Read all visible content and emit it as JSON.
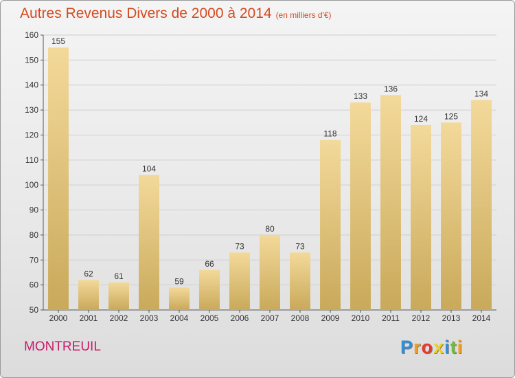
{
  "title": "Autres Revenus Divers de 2000 à 2014",
  "unit": "(en milliers d'€)",
  "commune": "MONTREUIL",
  "logo": {
    "letters": [
      {
        "char": "P",
        "color": "#2f8fd8"
      },
      {
        "char": "r",
        "color": "#f0a020"
      },
      {
        "char": "o",
        "color": "#e83a2a"
      },
      {
        "char": "x",
        "color": "#f0d020"
      },
      {
        "char": "i",
        "color": "#2f8fd8"
      },
      {
        "char": "t",
        "color": "#6cbf3a"
      },
      {
        "char": "i",
        "color": "#f0a020"
      }
    ]
  },
  "chart_data": {
    "type": "bar",
    "categories": [
      "2000",
      "2001",
      "2002",
      "2003",
      "2004",
      "2005",
      "2006",
      "2007",
      "2008",
      "2009",
      "2010",
      "2011",
      "2012",
      "2013",
      "2014"
    ],
    "values": [
      155,
      62,
      61,
      104,
      59,
      66,
      73,
      80,
      73,
      118,
      133,
      136,
      124,
      125,
      134
    ],
    "data_labels": [
      "155",
      "62",
      "61",
      "104",
      "59",
      "66",
      "73",
      "80",
      "73",
      "118",
      "133",
      "136",
      "124",
      "125",
      "134"
    ],
    "ylim": [
      50,
      160
    ],
    "yticks": [
      50,
      60,
      70,
      80,
      90,
      100,
      110,
      120,
      130,
      140,
      150,
      160
    ],
    "ytick_labels": [
      "50",
      "60",
      "70",
      "80",
      "90",
      "100",
      "110",
      "120",
      "130",
      "140",
      "150",
      "160"
    ],
    "grid": true,
    "bar_color_top": "#f3d99a",
    "bar_color_bottom": "#c9a95a"
  }
}
